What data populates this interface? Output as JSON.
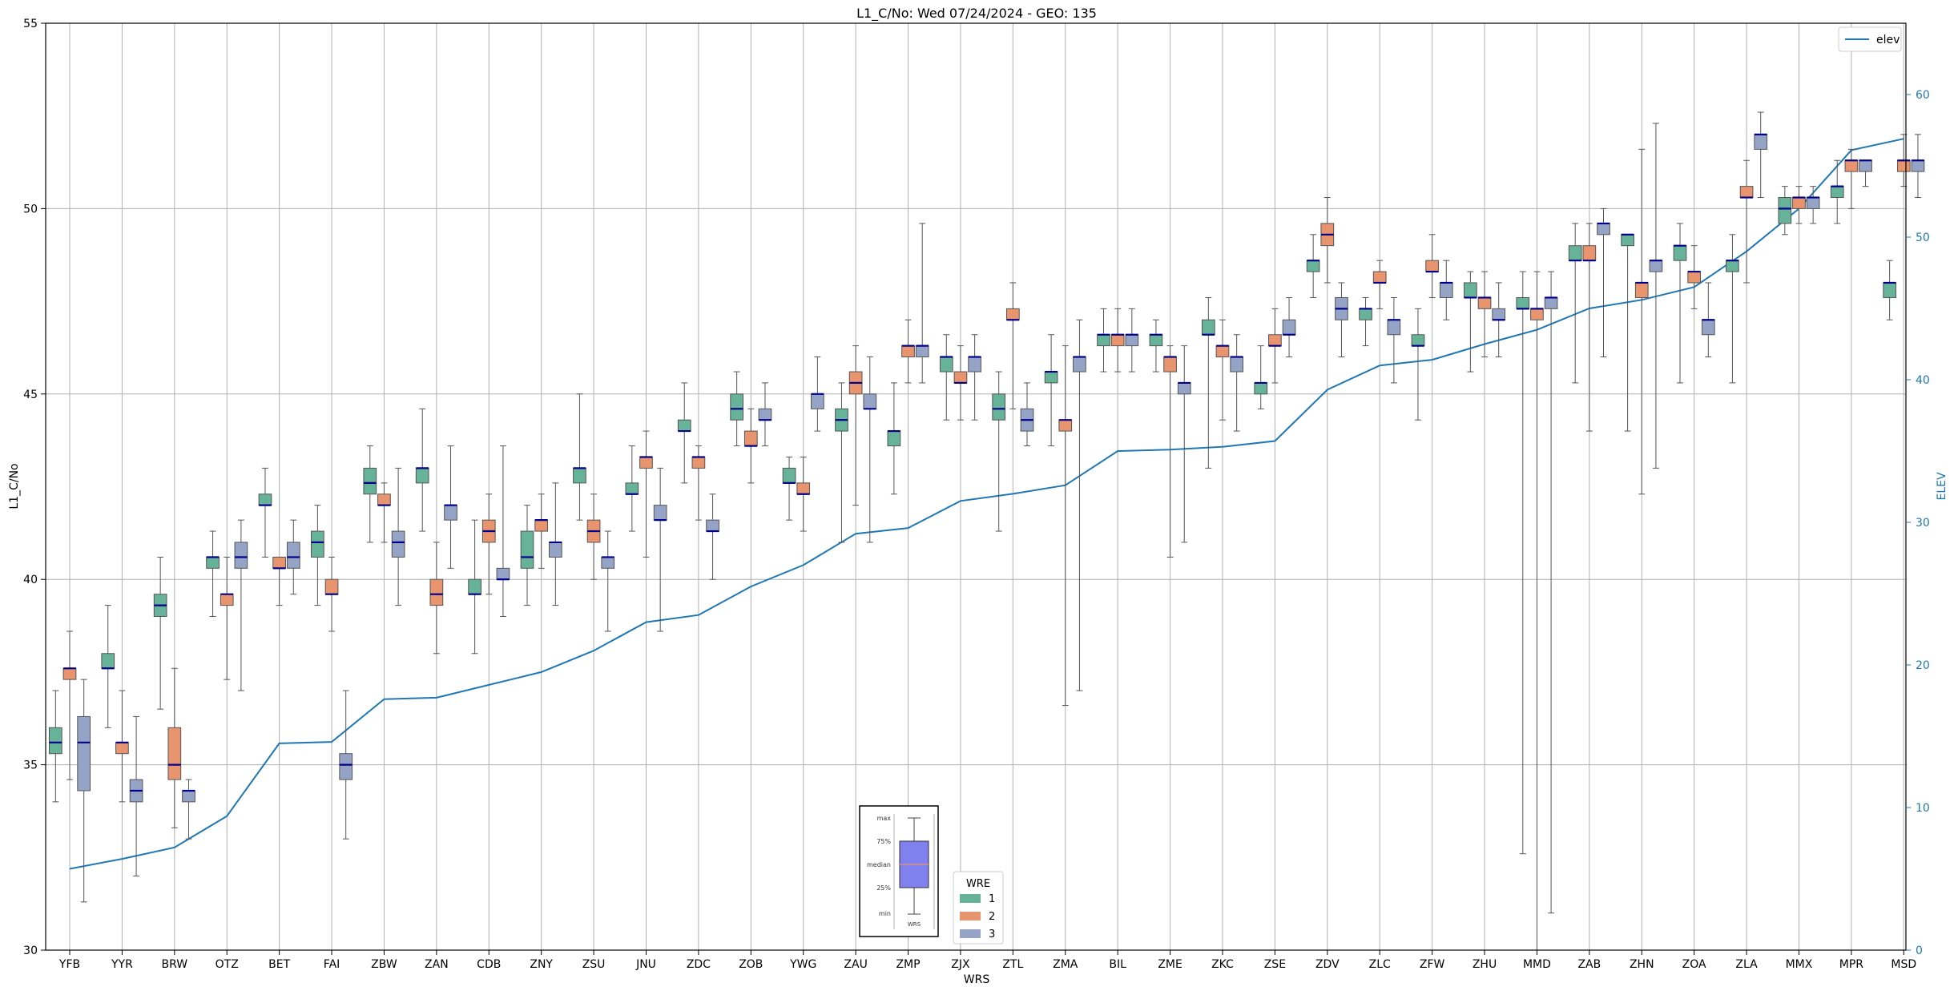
{
  "chart_data": {
    "type": "box",
    "title": "L1_C/No: Wed 07/24/2024 - GEO: 135",
    "xlabel": "WRS",
    "ylabel": "L1_C/No",
    "y2label": "ELEV",
    "ylim": [
      30,
      55
    ],
    "y2lim": [
      0,
      65
    ],
    "yticks": [
      30,
      35,
      40,
      45,
      50,
      55
    ],
    "y2ticks": [
      0,
      10,
      20,
      30,
      40,
      50,
      60
    ],
    "grid": true,
    "categories": [
      "YFB",
      "YYR",
      "BRW",
      "OTZ",
      "BET",
      "FAI",
      "ZBW",
      "ZAN",
      "CDB",
      "ZNY",
      "ZSU",
      "JNU",
      "ZDC",
      "ZOB",
      "YWG",
      "ZAU",
      "ZMP",
      "ZJX",
      "ZTL",
      "ZMA",
      "BIL",
      "ZME",
      "ZKC",
      "ZSE",
      "ZDV",
      "ZLC",
      "ZFW",
      "ZHU",
      "MMD",
      "ZAB",
      "ZHN",
      "ZOA",
      "ZLA",
      "MMX",
      "MPR",
      "MSD"
    ],
    "series": [
      {
        "name": "1",
        "color": "#66b39a",
        "boxes": [
          [
            34.0,
            35.3,
            35.6,
            36.0,
            37.0
          ],
          [
            36.0,
            37.6,
            37.6,
            38.0,
            39.3
          ],
          [
            36.5,
            39.0,
            39.3,
            39.6,
            40.6
          ],
          [
            39.0,
            40.3,
            40.6,
            40.6,
            41.3
          ],
          [
            40.6,
            42.0,
            42.0,
            42.3,
            43.0
          ],
          [
            39.3,
            40.6,
            41.0,
            41.3,
            42.0
          ],
          [
            41.0,
            42.3,
            42.6,
            43.0,
            43.6
          ],
          [
            41.3,
            42.6,
            43.0,
            43.0,
            44.6
          ],
          [
            38.0,
            39.6,
            39.6,
            40.0,
            41.6
          ],
          [
            39.3,
            40.3,
            40.6,
            41.3,
            42.0
          ],
          [
            41.6,
            42.6,
            43.0,
            43.0,
            45.0
          ],
          [
            41.3,
            42.3,
            42.3,
            42.6,
            43.6
          ],
          [
            42.6,
            44.0,
            44.0,
            44.3,
            45.3
          ],
          [
            43.6,
            44.3,
            44.6,
            45.0,
            45.6
          ],
          [
            41.6,
            42.6,
            42.6,
            43.0,
            43.3
          ],
          [
            41.0,
            44.0,
            44.3,
            44.6,
            45.3
          ],
          [
            42.3,
            43.6,
            44.0,
            44.0,
            45.3
          ],
          [
            44.3,
            45.6,
            46.0,
            46.0,
            46.6
          ],
          [
            41.3,
            44.3,
            44.6,
            45.0,
            45.6
          ],
          [
            43.6,
            45.3,
            45.6,
            45.6,
            46.6
          ],
          [
            45.6,
            46.3,
            46.6,
            46.6,
            47.3
          ],
          [
            45.6,
            46.3,
            46.6,
            46.6,
            47.0
          ],
          [
            43.0,
            46.6,
            46.6,
            47.0,
            47.6
          ],
          [
            44.6,
            45.0,
            45.3,
            45.3,
            46.3
          ],
          [
            47.6,
            48.3,
            48.6,
            48.6,
            49.3
          ],
          [
            46.3,
            47.0,
            47.3,
            47.3,
            47.6
          ],
          [
            44.3,
            46.3,
            46.3,
            46.6,
            47.3
          ],
          [
            45.6,
            47.6,
            47.6,
            48.0,
            48.3
          ],
          [
            32.6,
            47.3,
            47.3,
            47.6,
            48.3
          ],
          [
            45.3,
            48.6,
            48.6,
            49.0,
            49.6
          ],
          [
            44.0,
            49.0,
            49.3,
            49.3,
            49.3
          ],
          [
            45.3,
            48.6,
            49.0,
            49.0,
            49.6
          ],
          [
            45.3,
            48.3,
            48.6,
            48.6,
            49.3
          ],
          [
            49.3,
            49.6,
            50.0,
            50.3,
            50.6
          ],
          [
            49.6,
            50.3,
            50.6,
            50.6,
            51.3
          ],
          [
            47.0,
            47.6,
            48.0,
            48.0,
            48.6
          ]
        ]
      },
      {
        "name": "2",
        "color": "#e8946e",
        "boxes": [
          [
            34.6,
            37.3,
            37.6,
            37.6,
            38.6
          ],
          [
            34.0,
            35.3,
            35.6,
            35.6,
            37.0
          ],
          [
            33.3,
            34.6,
            35.0,
            36.0,
            37.6
          ],
          [
            37.3,
            39.3,
            39.6,
            39.6,
            40.6
          ],
          [
            39.3,
            40.3,
            40.3,
            40.6,
            40.6
          ],
          [
            38.6,
            39.6,
            39.6,
            40.0,
            40.6
          ],
          [
            41.0,
            42.0,
            42.0,
            42.3,
            42.6
          ],
          [
            38.0,
            39.3,
            39.6,
            40.0,
            41.0
          ],
          [
            39.6,
            41.0,
            41.3,
            41.6,
            42.3
          ],
          [
            40.3,
            41.3,
            41.6,
            41.6,
            42.3
          ],
          [
            40.0,
            41.0,
            41.3,
            41.6,
            42.3
          ],
          [
            40.6,
            43.0,
            43.3,
            43.3,
            44.0
          ],
          [
            41.6,
            43.0,
            43.3,
            43.3,
            43.6
          ],
          [
            42.6,
            43.6,
            43.6,
            44.0,
            44.6
          ],
          [
            41.3,
            42.3,
            42.3,
            42.6,
            43.3
          ],
          [
            42.0,
            45.0,
            45.3,
            45.6,
            46.3
          ],
          [
            45.3,
            46.0,
            46.3,
            46.3,
            47.0
          ],
          [
            44.3,
            45.3,
            45.3,
            45.6,
            46.3
          ],
          [
            44.6,
            47.0,
            47.0,
            47.3,
            48.0
          ],
          [
            36.6,
            44.0,
            44.3,
            44.3,
            46.3
          ],
          [
            45.6,
            46.3,
            46.6,
            46.6,
            47.3
          ],
          [
            40.6,
            45.6,
            46.0,
            46.0,
            46.3
          ],
          [
            44.3,
            46.0,
            46.3,
            46.3,
            47.0
          ],
          [
            45.3,
            46.3,
            46.3,
            46.6,
            47.3
          ],
          [
            48.0,
            49.0,
            49.3,
            49.6,
            50.3
          ],
          [
            47.3,
            48.0,
            48.0,
            48.3,
            48.6
          ],
          [
            47.6,
            48.3,
            48.3,
            48.6,
            49.3
          ],
          [
            46.0,
            47.3,
            47.6,
            47.6,
            48.3
          ],
          [
            30.0,
            47.0,
            47.3,
            47.3,
            48.3
          ],
          [
            44.0,
            48.6,
            48.6,
            49.0,
            49.6
          ],
          [
            42.3,
            47.6,
            48.0,
            48.0,
            51.6
          ],
          [
            47.3,
            48.0,
            48.3,
            48.3,
            49.0
          ],
          [
            48.0,
            50.3,
            50.3,
            50.6,
            51.3
          ],
          [
            49.6,
            50.0,
            50.3,
            50.3,
            50.6
          ],
          [
            50.0,
            51.0,
            51.3,
            51.3,
            51.6
          ],
          [
            50.6,
            51.0,
            51.3,
            51.3,
            52.0
          ]
        ]
      },
      {
        "name": "3",
        "color": "#95a3c6",
        "boxes": [
          [
            31.3,
            34.3,
            35.6,
            36.3,
            37.3
          ],
          [
            32.0,
            34.0,
            34.3,
            34.6,
            36.3
          ],
          [
            33.0,
            34.0,
            34.3,
            34.3,
            34.6
          ],
          [
            37.0,
            40.3,
            40.6,
            41.0,
            41.6
          ],
          [
            39.6,
            40.3,
            40.6,
            41.0,
            41.6
          ],
          [
            33.0,
            34.6,
            35.0,
            35.3,
            37.0
          ],
          [
            39.3,
            40.6,
            41.0,
            41.3,
            43.0
          ],
          [
            40.3,
            41.6,
            42.0,
            42.0,
            43.6
          ],
          [
            39.0,
            40.0,
            40.0,
            40.3,
            43.6
          ],
          [
            39.3,
            40.6,
            41.0,
            41.0,
            42.6
          ],
          [
            38.6,
            40.3,
            40.6,
            40.6,
            41.3
          ],
          [
            38.6,
            41.6,
            41.6,
            42.0,
            43.0
          ],
          [
            40.0,
            41.3,
            41.3,
            41.6,
            42.3
          ],
          [
            43.6,
            44.3,
            44.3,
            44.6,
            45.3
          ],
          [
            44.0,
            44.6,
            45.0,
            45.0,
            46.0
          ],
          [
            41.0,
            44.6,
            44.6,
            45.0,
            46.0
          ],
          [
            45.3,
            46.0,
            46.3,
            46.3,
            49.6
          ],
          [
            44.3,
            45.6,
            46.0,
            46.0,
            46.6
          ],
          [
            43.6,
            44.0,
            44.3,
            44.6,
            45.3
          ],
          [
            37.0,
            45.6,
            46.0,
            46.0,
            47.0
          ],
          [
            45.6,
            46.3,
            46.6,
            46.6,
            47.3
          ],
          [
            41.0,
            45.0,
            45.3,
            45.3,
            46.3
          ],
          [
            44.0,
            45.6,
            46.0,
            46.0,
            46.6
          ],
          [
            46.0,
            46.6,
            46.6,
            47.0,
            47.6
          ],
          [
            46.0,
            47.0,
            47.3,
            47.6,
            48.0
          ],
          [
            45.3,
            46.6,
            47.0,
            47.0,
            47.6
          ],
          [
            47.0,
            47.6,
            48.0,
            48.0,
            48.6
          ],
          [
            46.0,
            47.0,
            47.0,
            47.3,
            48.0
          ],
          [
            31.0,
            47.3,
            47.6,
            47.6,
            48.3
          ],
          [
            46.0,
            49.3,
            49.6,
            49.6,
            50.0
          ],
          [
            43.0,
            48.3,
            48.6,
            48.6,
            52.3
          ],
          [
            46.0,
            46.6,
            47.0,
            47.0,
            48.0
          ],
          [
            50.3,
            51.6,
            52.0,
            52.0,
            52.6
          ],
          [
            49.6,
            50.0,
            50.3,
            50.3,
            50.6
          ],
          [
            50.6,
            51.0,
            51.3,
            51.3,
            51.3
          ],
          [
            50.3,
            51.0,
            51.3,
            51.3,
            52.0
          ]
        ]
      }
    ],
    "elev": {
      "name": "elev",
      "color": "#1f77b4",
      "values": [
        5.7,
        6.4,
        7.2,
        9.4,
        14.5,
        14.6,
        17.6,
        17.7,
        18.6,
        19.5,
        21.0,
        23.0,
        23.5,
        25.5,
        27.0,
        29.2,
        29.6,
        31.5,
        32.0,
        32.6,
        35.0,
        35.1,
        35.3,
        35.7,
        39.3,
        41.0,
        41.4,
        42.5,
        43.5,
        45.0,
        45.6,
        46.5,
        49.0,
        52.0,
        56.1,
        56.9
      ]
    },
    "legend_title": "WRE",
    "legend_location": "bottom-center",
    "elev_legend_location": "top-right",
    "inset_labels": [
      "max",
      "75%",
      "median",
      "25%",
      "min",
      "WRS"
    ]
  }
}
